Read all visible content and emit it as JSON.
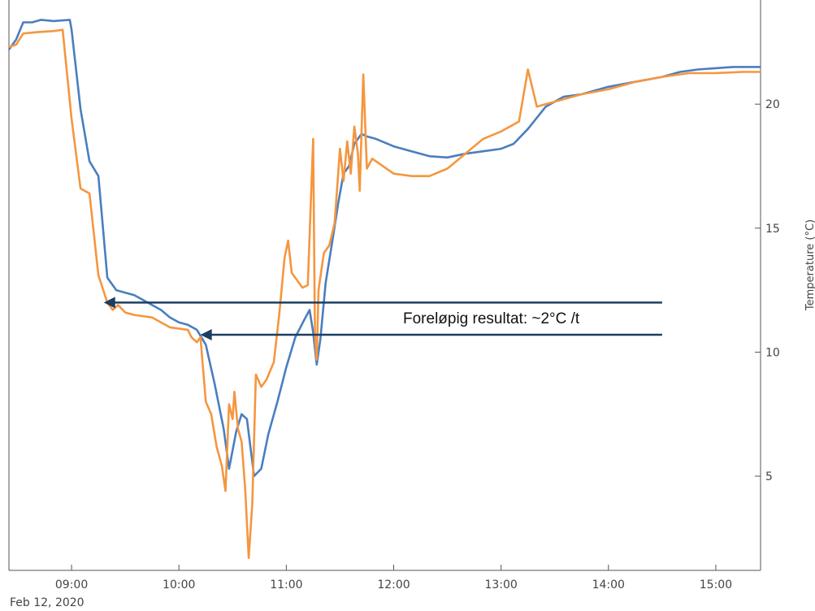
{
  "chart_data": {
    "type": "line",
    "x_unit": "time of day",
    "date_label": "Feb 12, 2020",
    "x_range": [
      "08:25",
      "15:25"
    ],
    "x_ticks": [
      "09:00",
      "10:00",
      "11:00",
      "12:00",
      "13:00",
      "14:00",
      "15:00"
    ],
    "ylabel": "Temperature (°C)",
    "ylim": [
      1.2,
      24.2
    ],
    "y_ticks": [
      5,
      10,
      15,
      20
    ],
    "grid": false,
    "legend": "none",
    "series": [
      {
        "color": "#4a7ebf",
        "points": [
          [
            "08:25",
            22.2
          ],
          [
            "08:29",
            22.6
          ],
          [
            "08:33",
            23.3
          ],
          [
            "08:38",
            23.3
          ],
          [
            "08:43",
            23.4
          ],
          [
            "08:50",
            23.35
          ],
          [
            "08:59",
            23.4
          ],
          [
            "09:00",
            23.0
          ],
          [
            "09:05",
            19.8
          ],
          [
            "09:10",
            17.7
          ],
          [
            "09:15",
            17.1
          ],
          [
            "09:20",
            13.0
          ],
          [
            "09:25",
            12.5
          ],
          [
            "09:30",
            12.4
          ],
          [
            "09:35",
            12.3
          ],
          [
            "09:40",
            12.1
          ],
          [
            "09:45",
            11.9
          ],
          [
            "09:50",
            11.7
          ],
          [
            "09:55",
            11.4
          ],
          [
            "10:00",
            11.2
          ],
          [
            "10:05",
            11.1
          ],
          [
            "10:10",
            10.9
          ],
          [
            "10:15",
            10.3
          ],
          [
            "10:20",
            8.7
          ],
          [
            "10:25",
            6.9
          ],
          [
            "10:28",
            5.3
          ],
          [
            "10:32",
            6.8
          ],
          [
            "10:35",
            7.5
          ],
          [
            "10:38",
            7.3
          ],
          [
            "10:42",
            5.0
          ],
          [
            "10:46",
            5.3
          ],
          [
            "10:50",
            6.7
          ],
          [
            "10:55",
            8.0
          ],
          [
            "11:00",
            9.4
          ],
          [
            "11:05",
            10.6
          ],
          [
            "11:10",
            11.3
          ],
          [
            "11:13",
            11.7
          ],
          [
            "11:15",
            10.8
          ],
          [
            "11:17",
            9.5
          ],
          [
            "11:19",
            10.5
          ],
          [
            "11:22",
            12.8
          ],
          [
            "11:26",
            14.6
          ],
          [
            "11:29",
            16.0
          ],
          [
            "11:32",
            17.2
          ],
          [
            "11:35",
            17.5
          ],
          [
            "11:38",
            18.4
          ],
          [
            "11:42",
            18.8
          ],
          [
            "11:45",
            18.7
          ],
          [
            "11:50",
            18.6
          ],
          [
            "12:00",
            18.3
          ],
          [
            "12:10",
            18.1
          ],
          [
            "12:20",
            17.9
          ],
          [
            "12:30",
            17.85
          ],
          [
            "12:40",
            18.0
          ],
          [
            "12:50",
            18.1
          ],
          [
            "13:00",
            18.2
          ],
          [
            "13:07",
            18.4
          ],
          [
            "13:15",
            19.0
          ],
          [
            "13:25",
            19.9
          ],
          [
            "13:35",
            20.3
          ],
          [
            "13:45",
            20.4
          ],
          [
            "14:00",
            20.7
          ],
          [
            "14:15",
            20.9
          ],
          [
            "14:30",
            21.1
          ],
          [
            "14:40",
            21.3
          ],
          [
            "14:50",
            21.4
          ],
          [
            "15:00",
            21.45
          ],
          [
            "15:10",
            21.5
          ],
          [
            "15:25",
            21.5
          ]
        ]
      },
      {
        "color": "#f5963f",
        "points": [
          [
            "08:25",
            22.3
          ],
          [
            "08:29",
            22.4
          ],
          [
            "08:33",
            22.85
          ],
          [
            "08:40",
            22.9
          ],
          [
            "08:50",
            22.95
          ],
          [
            "08:55",
            23.0
          ],
          [
            "09:00",
            19.4
          ],
          [
            "09:05",
            16.6
          ],
          [
            "09:10",
            16.4
          ],
          [
            "09:15",
            13.1
          ],
          [
            "09:20",
            12.0
          ],
          [
            "09:23",
            11.7
          ],
          [
            "09:26",
            11.9
          ],
          [
            "09:30",
            11.6
          ],
          [
            "09:35",
            11.5
          ],
          [
            "09:45",
            11.4
          ],
          [
            "09:55",
            11.0
          ],
          [
            "10:05",
            10.9
          ],
          [
            "10:07",
            10.6
          ],
          [
            "10:10",
            10.4
          ],
          [
            "10:12",
            10.6
          ],
          [
            "10:15",
            8.0
          ],
          [
            "10:18",
            7.5
          ],
          [
            "10:21",
            6.2
          ],
          [
            "10:24",
            5.4
          ],
          [
            "10:26",
            4.4
          ],
          [
            "10:28",
            7.9
          ],
          [
            "10:30",
            7.3
          ],
          [
            "10:31",
            8.4
          ],
          [
            "10:33",
            6.9
          ],
          [
            "10:35",
            6.4
          ],
          [
            "10:37",
            4.5
          ],
          [
            "10:39",
            1.7
          ],
          [
            "10:41",
            3.9
          ],
          [
            "10:43",
            9.1
          ],
          [
            "10:46",
            8.6
          ],
          [
            "10:49",
            8.9
          ],
          [
            "10:53",
            9.6
          ],
          [
            "10:56",
            11.5
          ],
          [
            "10:59",
            13.8
          ],
          [
            "11:01",
            14.5
          ],
          [
            "11:03",
            13.2
          ],
          [
            "11:06",
            12.9
          ],
          [
            "11:09",
            12.6
          ],
          [
            "11:12",
            12.7
          ],
          [
            "11:15",
            18.6
          ],
          [
            "11:16",
            10.7
          ],
          [
            "11:17",
            9.7
          ],
          [
            "11:18",
            12.5
          ],
          [
            "11:21",
            14.0
          ],
          [
            "11:24",
            14.3
          ],
          [
            "11:27",
            15.2
          ],
          [
            "11:30",
            18.2
          ],
          [
            "11:32",
            16.9
          ],
          [
            "11:34",
            18.5
          ],
          [
            "11:36",
            17.2
          ],
          [
            "11:38",
            19.1
          ],
          [
            "11:40",
            18.0
          ],
          [
            "11:41",
            16.5
          ],
          [
            "11:43",
            21.2
          ],
          [
            "11:45",
            17.4
          ],
          [
            "11:48",
            17.8
          ],
          [
            "11:52",
            17.6
          ],
          [
            "12:00",
            17.2
          ],
          [
            "12:10",
            17.1
          ],
          [
            "12:20",
            17.1
          ],
          [
            "12:30",
            17.4
          ],
          [
            "12:40",
            18.0
          ],
          [
            "12:50",
            18.6
          ],
          [
            "13:00",
            18.9
          ],
          [
            "13:10",
            19.3
          ],
          [
            "13:15",
            21.4
          ],
          [
            "13:20",
            19.9
          ],
          [
            "13:30",
            20.1
          ],
          [
            "13:45",
            20.4
          ],
          [
            "14:00",
            20.6
          ],
          [
            "14:15",
            20.9
          ],
          [
            "14:30",
            21.1
          ],
          [
            "14:45",
            21.25
          ],
          [
            "15:00",
            21.25
          ],
          [
            "15:15",
            21.3
          ],
          [
            "15:25",
            21.3
          ]
        ]
      }
    ],
    "annotations": [
      {
        "text": "Foreløpig resultat: ~2°C /t",
        "arrows": [
          {
            "from": [
              "14:30",
              12.0
            ],
            "to": [
              "09:18",
              12.0
            ]
          },
          {
            "from": [
              "14:30",
              10.7
            ],
            "to": [
              "10:12",
              10.7
            ]
          }
        ]
      }
    ],
    "arrow_color": "#1b3f62"
  }
}
